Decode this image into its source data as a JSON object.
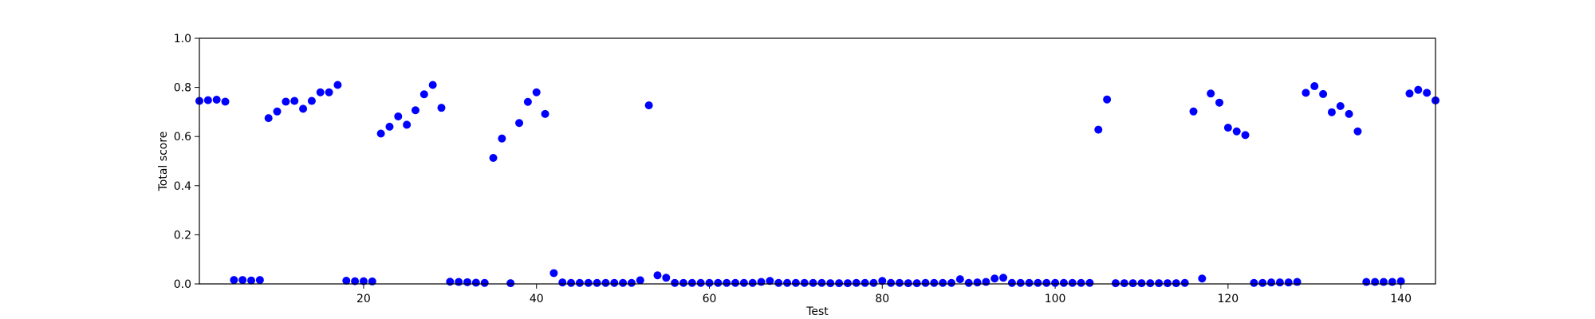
{
  "chart_data": {
    "type": "scatter",
    "title": "",
    "xlabel": "Test",
    "ylabel": "Total score",
    "xlim": [
      1,
      144
    ],
    "ylim": [
      0,
      1.0
    ],
    "grid": false,
    "marker_color": "#0000ff",
    "x_ticks": [
      {
        "value": 20,
        "label": "20"
      },
      {
        "value": 40,
        "label": "40"
      },
      {
        "value": 60,
        "label": "60"
      },
      {
        "value": 80,
        "label": "80"
      },
      {
        "value": 100,
        "label": "100"
      },
      {
        "value": 120,
        "label": "120"
      },
      {
        "value": 140,
        "label": "140"
      }
    ],
    "y_ticks": [
      {
        "value": 0.0,
        "label": "0.0"
      },
      {
        "value": 0.2,
        "label": "0.2"
      },
      {
        "value": 0.4,
        "label": "0.4"
      },
      {
        "value": 0.6,
        "label": "0.6"
      },
      {
        "value": 0.8,
        "label": "0.8"
      },
      {
        "value": 1.0,
        "label": "1.0"
      }
    ],
    "series": [
      {
        "x": [
          1,
          2,
          3,
          4,
          5,
          6,
          7,
          8,
          9,
          10,
          11,
          12,
          13,
          14,
          15,
          16,
          17,
          18,
          19,
          20,
          21,
          22,
          23,
          24,
          25,
          26,
          27,
          28,
          29,
          30,
          31,
          32,
          33,
          34,
          35,
          36,
          37,
          38,
          39,
          40,
          41,
          42,
          43,
          44,
          45,
          46,
          47,
          48,
          49,
          50,
          51,
          52,
          53,
          54,
          55,
          56,
          57,
          58,
          59,
          60,
          61,
          62,
          63,
          64,
          65,
          66,
          67,
          68,
          69,
          70,
          71,
          72,
          73,
          74,
          75,
          76,
          77,
          78,
          79,
          80,
          81,
          82,
          83,
          84,
          85,
          86,
          87,
          88,
          89,
          90,
          91,
          92,
          93,
          94,
          95,
          96,
          97,
          98,
          99,
          100,
          101,
          102,
          103,
          104,
          105,
          106,
          107,
          108,
          109,
          110,
          111,
          112,
          113,
          114,
          115,
          116,
          117,
          118,
          119,
          120,
          121,
          122,
          123,
          124,
          125,
          126,
          127,
          128,
          129,
          130,
          131,
          132,
          133,
          134,
          135,
          136,
          137,
          138,
          139,
          140,
          141,
          142,
          143,
          144
        ],
        "y": [
          0.745,
          0.748,
          0.75,
          0.742,
          0.016,
          0.016,
          0.014,
          0.016,
          0.675,
          0.702,
          0.742,
          0.745,
          0.713,
          0.745,
          0.78,
          0.78,
          0.81,
          0.013,
          0.011,
          0.011,
          0.01,
          0.612,
          0.64,
          0.682,
          0.648,
          0.707,
          0.772,
          0.81,
          0.717,
          0.009,
          0.008,
          0.007,
          0.005,
          0.004,
          0.513,
          0.592,
          0.003,
          0.655,
          0.741,
          0.78,
          0.692,
          0.044,
          0.006,
          0.004,
          0.004,
          0.004,
          0.004,
          0.004,
          0.004,
          0.004,
          0.004,
          0.015,
          0.727,
          0.035,
          0.025,
          0.004,
          0.004,
          0.004,
          0.004,
          0.004,
          0.004,
          0.004,
          0.004,
          0.004,
          0.004,
          0.008,
          0.012,
          0.004,
          0.004,
          0.004,
          0.004,
          0.004,
          0.004,
          0.003,
          0.003,
          0.003,
          0.004,
          0.004,
          0.004,
          0.012,
          0.004,
          0.004,
          0.003,
          0.003,
          0.004,
          0.004,
          0.004,
          0.004,
          0.019,
          0.004,
          0.006,
          0.008,
          0.022,
          0.025,
          0.004,
          0.004,
          0.004,
          0.004,
          0.004,
          0.004,
          0.004,
          0.004,
          0.004,
          0.004,
          0.628,
          0.751,
          0.003,
          0.003,
          0.003,
          0.003,
          0.003,
          0.003,
          0.003,
          0.003,
          0.004,
          0.702,
          0.022,
          0.775,
          0.738,
          0.636,
          0.621,
          0.606,
          0.004,
          0.004,
          0.006,
          0.006,
          0.006,
          0.008,
          0.778,
          0.805,
          0.773,
          0.699,
          0.724,
          0.692,
          0.621,
          0.008,
          0.008,
          0.008,
          0.008,
          0.011,
          0.775,
          0.79,
          0.778,
          0.747
        ]
      }
    ]
  }
}
